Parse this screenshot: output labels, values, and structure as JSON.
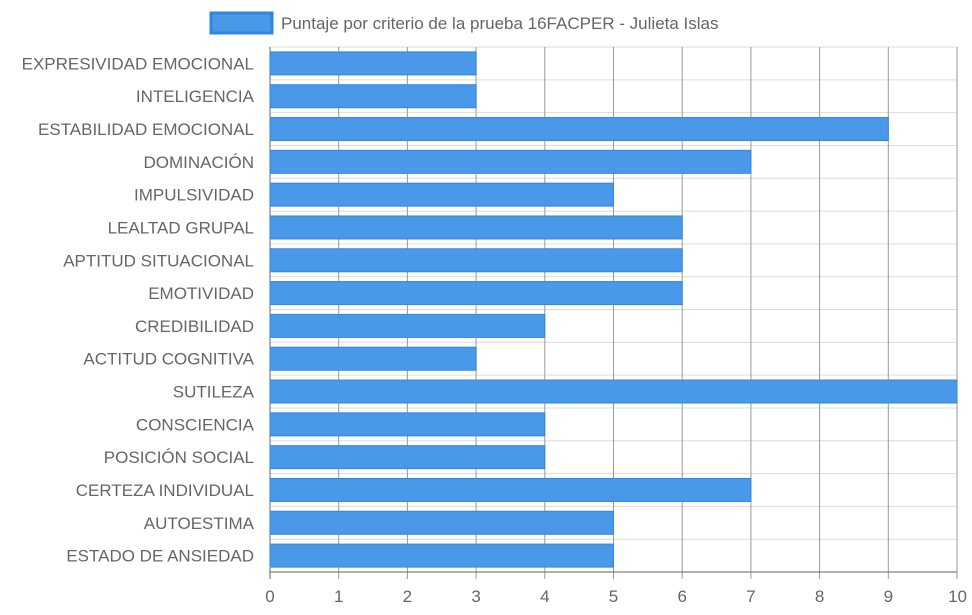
{
  "chart_data": {
    "type": "bar",
    "orientation": "horizontal",
    "legend": {
      "position": "top",
      "entries": [
        "Puntaje por criterio de la prueba 16FACPER - Julieta Islas"
      ]
    },
    "categories": [
      "EXPRESIVIDAD EMOCIONAL",
      "INTELIGENCIA",
      "ESTABILIDAD EMOCIONAL",
      "DOMINACIÓN",
      "IMPULSIVIDAD",
      "LEALTAD GRUPAL",
      "APTITUD SITUACIONAL",
      "EMOTIVIDAD",
      "CREDIBILIDAD",
      "ACTITUD COGNITIVA",
      "SUTILEZA",
      "CONSCIENCIA",
      "POSICIÓN SOCIAL",
      "CERTEZA INDIVIDUAL",
      "AUTOESTIMA",
      "ESTADO DE ANSIEDAD"
    ],
    "series": [
      {
        "name": "Puntaje por criterio de la prueba 16FACPER - Julieta Islas",
        "values": [
          3,
          3,
          9,
          7,
          5,
          6,
          6,
          6,
          4,
          3,
          10,
          4,
          4,
          7,
          5,
          5
        ]
      }
    ],
    "xlim": [
      0,
      10
    ],
    "xticks": [
      "0",
      "1",
      "2",
      "3",
      "4",
      "5",
      "6",
      "7",
      "8",
      "9",
      "10"
    ],
    "grid": true,
    "colors": {
      "bar_fill": "#4a98e8",
      "bar_stroke": "#2f86e6",
      "grid": "#dcdcdc",
      "grid_vertical": "#999999",
      "text": "#666666"
    }
  }
}
